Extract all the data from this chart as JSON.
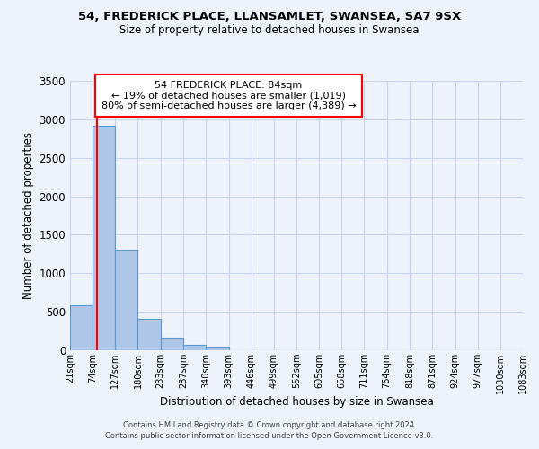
{
  "title_line1": "54, FREDERICK PLACE, LLANSAMLET, SWANSEA, SA7 9SX",
  "title_line2": "Size of property relative to detached houses in Swansea",
  "xlabel": "Distribution of detached houses by size in Swansea",
  "ylabel": "Number of detached properties",
  "bin_labels": [
    "21sqm",
    "74sqm",
    "127sqm",
    "180sqm",
    "233sqm",
    "287sqm",
    "340sqm",
    "393sqm",
    "446sqm",
    "499sqm",
    "552sqm",
    "605sqm",
    "658sqm",
    "711sqm",
    "764sqm",
    "818sqm",
    "871sqm",
    "924sqm",
    "977sqm",
    "1030sqm",
    "1083sqm"
  ],
  "bar_values": [
    580,
    2920,
    1310,
    410,
    165,
    75,
    50,
    0,
    0,
    0,
    0,
    0,
    0,
    0,
    0,
    0,
    0,
    0,
    0,
    0
  ],
  "bar_color": "#aec6e8",
  "bar_edge_color": "#5b9bd5",
  "vline_x": 84,
  "ylim": [
    0,
    3500
  ],
  "yticks": [
    0,
    500,
    1000,
    1500,
    2000,
    2500,
    3000,
    3500
  ],
  "annotation_title": "54 FREDERICK PLACE: 84sqm",
  "annotation_line1": "← 19% of detached houses are smaller (1,019)",
  "annotation_line2": "80% of semi-detached houses are larger (4,389) →",
  "bin_edges": [
    21,
    74,
    127,
    180,
    233,
    287,
    340,
    393,
    446,
    499,
    552,
    605,
    658,
    711,
    764,
    818,
    871,
    924,
    977,
    1030,
    1083
  ],
  "footer_line1": "Contains HM Land Registry data © Crown copyright and database right 2024.",
  "footer_line2": "Contains public sector information licensed under the Open Government Licence v3.0.",
  "bg_color": "#eef2fb",
  "grid_color": "#c8d4ee"
}
